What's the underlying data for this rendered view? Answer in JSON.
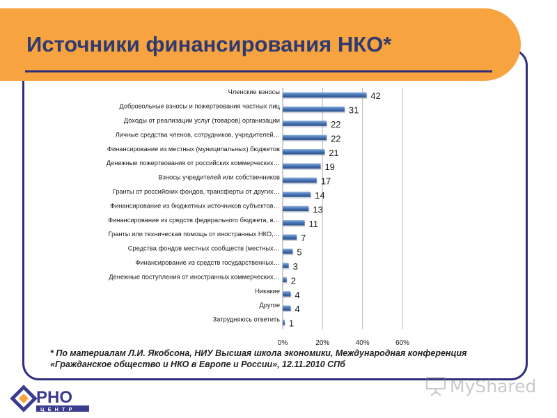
{
  "slide": {
    "title": "Источники финансирования НКО*",
    "footnote_lines": [
      "* По материалам Л.И. Якобсона, НИУ Высшая школа экономики, Международная конференция",
      "«Гражданское общество и НКО в Европе и России», 12.11.2010 СПб"
    ],
    "logo_text": "РНО",
    "logo_subtext": "ЦЕНТР",
    "watermark_text": "MyShared"
  },
  "colors": {
    "banner": "#f7a340",
    "title": "#2e3a70",
    "frame": "#2e2e7a",
    "bar": "#4a78b8",
    "bar_light": "#8fb0de",
    "bar_dark": "#2c4f86"
  },
  "chart_data": {
    "type": "bar",
    "orientation": "horizontal",
    "categories": [
      "Членские взносы",
      "Добровольные взносы и пожертвования частных лиц",
      "Доходы от реализации услуг (товаров) организации",
      "Личные средства членов, сотрудников, учредителей…",
      "Финансирование из местных (муниципальных) бюджетов",
      "Денежные пожертвования от российских коммерческих…",
      "Взносы учредителей или собственников",
      "Гранты от российских фондов, трансферты от других…",
      "Финансирование из бюджетных источников субъектов…",
      "Финансирование из средств федерального бюджета, в…",
      "Гранты или техническая помощь от иностранных НКО,…",
      "Средства фондов местных сообществ (местных…",
      "Финансирование из средств государственных…",
      "Денежные поступления от иностранных коммерческих…",
      "Никакие",
      "Другое",
      "Затрудняюсь ответить"
    ],
    "values": [
      42,
      31,
      22,
      22,
      21,
      19,
      17,
      14,
      13,
      11,
      7,
      5,
      3,
      2,
      4,
      4,
      1
    ],
    "value_labels": [
      "42",
      "31",
      "22",
      "22",
      "21",
      "19",
      "17",
      "14",
      "13",
      "11",
      "7",
      "5",
      "3",
      "2",
      "4",
      "4",
      "1"
    ],
    "xlim": [
      0,
      60
    ],
    "x_ticks": [
      "0%",
      "20%",
      "40%",
      "60%"
    ],
    "x_tick_values": [
      0,
      20,
      40,
      60
    ],
    "grid": true,
    "legend": "none"
  }
}
